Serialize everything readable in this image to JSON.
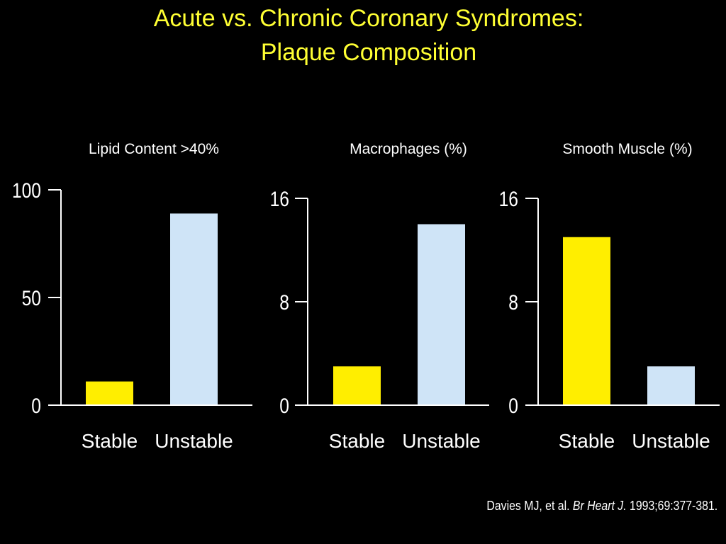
{
  "slide": {
    "title_line1": "Acute vs. Chronic Coronary Syndromes:",
    "title_line2": "Plaque Composition",
    "citation_authors": "Davies MJ, et al. ",
    "citation_journal": "Br Heart J.",
    "citation_details": " 1993;69:377-381."
  },
  "colors": {
    "stable": "#ffee00",
    "unstable": "#cfe4f7",
    "axis": "#ffffff",
    "title": "#ffff33"
  },
  "chart_data": [
    {
      "type": "bar",
      "title": "Lipid Content >40%",
      "categories": [
        "Stable",
        "Unstable"
      ],
      "values": [
        11,
        89
      ],
      "ylim": [
        0,
        100
      ],
      "yticks": [
        0,
        50,
        100
      ]
    },
    {
      "type": "bar",
      "title": "Macrophages (%)",
      "categories": [
        "Stable",
        "Unstable"
      ],
      "values": [
        3,
        14
      ],
      "ylim": [
        0,
        16
      ],
      "yticks": [
        0,
        8,
        16
      ]
    },
    {
      "type": "bar",
      "title": "Smooth Muscle (%)",
      "categories": [
        "Stable",
        "Unstable"
      ],
      "values": [
        13,
        3
      ],
      "ylim": [
        0,
        16
      ],
      "yticks": [
        0,
        8,
        16
      ]
    }
  ]
}
